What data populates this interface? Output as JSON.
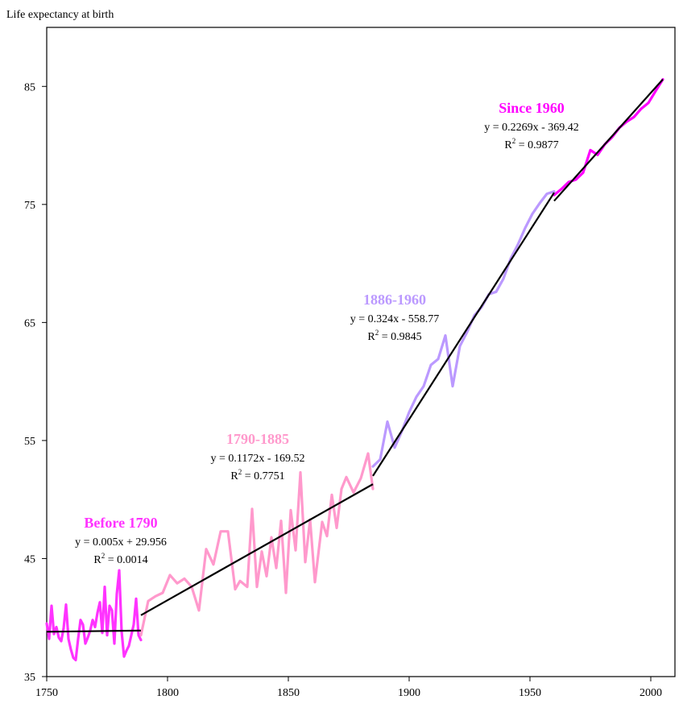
{
  "chart_data": {
    "type": "line",
    "ylabel": "Life expectancy at birth",
    "xlim": [
      1750,
      2010
    ],
    "ylim": [
      35,
      90
    ],
    "x_ticks": [
      1750,
      1800,
      1850,
      1900,
      1950,
      2000
    ],
    "y_ticks": [
      35,
      45,
      55,
      65,
      75,
      85
    ],
    "grid": false,
    "series": [
      {
        "key": "before1790",
        "color": "#ff33ff",
        "x": [
          1750,
          1751,
          1752,
          1753,
          1754,
          1755,
          1756,
          1757,
          1758,
          1759,
          1760,
          1761,
          1762,
          1763,
          1764,
          1765,
          1766,
          1767,
          1768,
          1769,
          1770,
          1771,
          1772,
          1773,
          1774,
          1775,
          1776,
          1777,
          1778,
          1779,
          1780,
          1781,
          1782,
          1783,
          1784,
          1785,
          1786,
          1787,
          1788,
          1789
        ],
        "values": [
          39.5,
          38.2,
          41.0,
          38.6,
          39.2,
          38.3,
          38.0,
          39.1,
          41.1,
          38.2,
          37.3,
          36.6,
          36.4,
          38.2,
          39.8,
          39.4,
          37.8,
          38.3,
          38.9,
          39.8,
          39.2,
          40.4,
          41.3,
          38.7,
          42.6,
          38.5,
          41.0,
          40.6,
          37.8,
          42.0,
          44.0,
          38.8,
          36.7,
          37.2,
          37.6,
          38.5,
          39.4,
          41.6,
          38.5,
          38.1
        ]
      },
      {
        "key": "y1790_1885",
        "color": "#ff99cc",
        "x": [
          1789,
          1792,
          1795,
          1798,
          1801,
          1804,
          1807,
          1810,
          1813,
          1816,
          1819,
          1822,
          1825,
          1828,
          1830,
          1833,
          1835,
          1837,
          1839,
          1841,
          1843,
          1845,
          1847,
          1849,
          1851,
          1853,
          1855,
          1857,
          1859,
          1861,
          1864,
          1866,
          1868,
          1870,
          1872,
          1874,
          1877,
          1880,
          1883,
          1885
        ],
        "values": [
          38.5,
          41.4,
          41.8,
          42.1,
          43.6,
          42.9,
          43.3,
          42.6,
          40.6,
          45.8,
          44.5,
          47.3,
          47.3,
          42.4,
          43.1,
          42.6,
          49.2,
          42.6,
          45.6,
          43.5,
          46.8,
          44.2,
          48.2,
          42.1,
          49.1,
          45.7,
          52.3,
          44.7,
          48.3,
          43.0,
          48.1,
          46.9,
          50.4,
          47.6,
          50.9,
          51.9,
          50.6,
          51.8,
          53.9,
          50.9
        ]
      },
      {
        "key": "y1886_1960",
        "color": "#bb99ff",
        "x": [
          1885,
          1888,
          1891,
          1894,
          1897,
          1900,
          1903,
          1906,
          1909,
          1912,
          1915,
          1918,
          1921,
          1924,
          1927,
          1930,
          1933,
          1936,
          1939,
          1942,
          1945,
          1948,
          1951,
          1954,
          1957,
          1960
        ],
        "values": [
          52.8,
          53.4,
          56.6,
          54.4,
          55.8,
          57.4,
          58.7,
          59.6,
          61.4,
          61.9,
          63.9,
          59.6,
          63.0,
          64.2,
          65.6,
          66.3,
          67.4,
          67.6,
          68.7,
          70.4,
          71.6,
          73.0,
          74.2,
          75.1,
          75.9,
          76.1
        ]
      },
      {
        "key": "since1960",
        "color": "#ff00ff",
        "x": [
          1960,
          1963,
          1966,
          1969,
          1972,
          1975,
          1978,
          1981,
          1984,
          1987,
          1990,
          1993,
          1996,
          1999,
          2002,
          2005
        ],
        "values": [
          75.8,
          76.3,
          76.9,
          77.1,
          77.7,
          79.6,
          79.2,
          80.1,
          80.7,
          81.5,
          82.0,
          82.4,
          83.1,
          83.6,
          84.6,
          85.6
        ]
      }
    ],
    "trend_lines": [
      {
        "key": "before1790",
        "x": [
          1750,
          1789
        ],
        "y": [
          38.8,
          38.9
        ]
      },
      {
        "key": "y1790_1885",
        "x": [
          1789,
          1885
        ],
        "y": [
          40.2,
          51.3
        ]
      },
      {
        "key": "y1886_1960",
        "x": [
          1885,
          1960
        ],
        "y": [
          52.0,
          76.0
        ]
      },
      {
        "key": "since1960",
        "x": [
          1960,
          2005
        ],
        "y": [
          75.3,
          85.6
        ]
      }
    ],
    "annotations": [
      {
        "key": "before1790",
        "title": "Before 1790",
        "title_color": "#ff33ff",
        "equation": "y = 0.005x + 29.956",
        "r2_prefix": "R",
        "r2_value": " = 0.0014"
      },
      {
        "key": "y1790_1885",
        "title": "1790-1885",
        "title_color": "#ff99cc",
        "equation": "y = 0.1172x - 169.52",
        "r2_prefix": "R",
        "r2_value": " = 0.7751"
      },
      {
        "key": "y1886_1960",
        "title": "1886-1960",
        "title_color": "#bb99ff",
        "equation": "y = 0.324x - 558.77",
        "r2_prefix": "R",
        "r2_value": " = 0.9845"
      },
      {
        "key": "since1960",
        "title": "Since 1960",
        "title_color": "#ff00ff",
        "equation": "y = 0.2269x - 369.42",
        "r2_prefix": "R",
        "r2_value": " = 0.9877"
      }
    ],
    "superscript": "2"
  }
}
